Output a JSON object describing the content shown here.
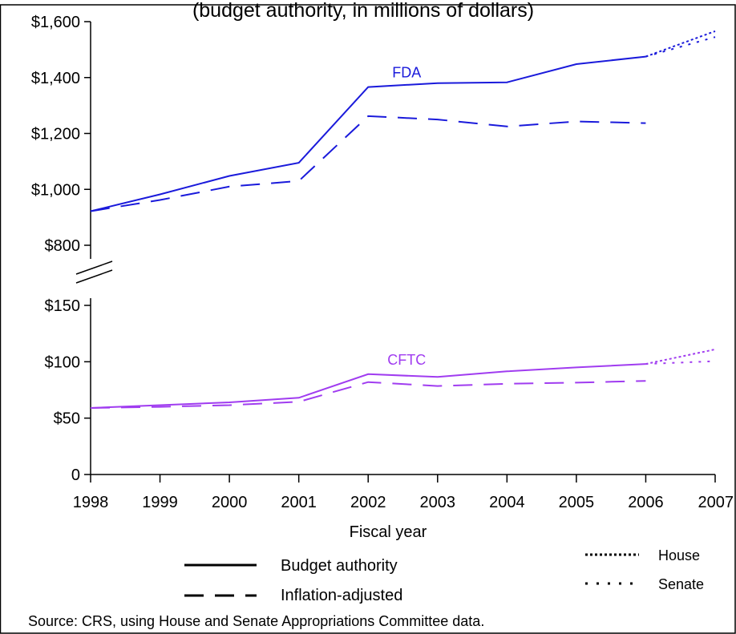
{
  "chart_data": [
    {
      "type": "line",
      "title": "(budget authority, in millions of dollars)",
      "y_tick_labels": [
        "$800",
        "$1,000",
        "$1,200",
        "$1,400",
        "$1,600"
      ],
      "ylim": [
        800,
        1600
      ],
      "x_tick_labels": [
        "1998",
        "1999",
        "2000",
        "2001",
        "2002",
        "2003",
        "2004",
        "2005",
        "2006",
        "2007"
      ],
      "series_label": "FDA",
      "color": "#1a1adb",
      "series": [
        {
          "style": "solid",
          "x": [
            1998,
            1999,
            2000,
            2001,
            2002,
            2003,
            2004,
            2005,
            2006
          ],
          "values": [
            922,
            982,
            1048,
            1095,
            1366,
            1380,
            1383,
            1448,
            1475
          ]
        },
        {
          "style": "dashed",
          "x": [
            1998,
            1999,
            2000,
            2001,
            2002,
            2003,
            2004,
            2005,
            2006
          ],
          "values": [
            922,
            962,
            1010,
            1030,
            1262,
            1250,
            1225,
            1243,
            1237
          ]
        },
        {
          "style": "house",
          "x": [
            2006,
            2007
          ],
          "values": [
            1475,
            1566
          ]
        },
        {
          "style": "senate",
          "x": [
            2006,
            2007
          ],
          "values": [
            1475,
            1545
          ]
        }
      ]
    },
    {
      "type": "line",
      "y_tick_labels": [
        "0",
        "$50",
        "$100",
        "$150"
      ],
      "ylim": [
        0,
        150
      ],
      "series_label": "CFTC",
      "color": "#a03cf0",
      "series": [
        {
          "style": "solid",
          "x": [
            1998,
            1999,
            2000,
            2001,
            2002,
            2003,
            2004,
            2005,
            2006
          ],
          "values": [
            59,
            61.5,
            64,
            68,
            89,
            86.5,
            91.5,
            95,
            98
          ]
        },
        {
          "style": "dashed",
          "x": [
            1998,
            1999,
            2000,
            2001,
            2002,
            2003,
            2004,
            2005,
            2006
          ],
          "values": [
            59,
            60,
            61.5,
            64.5,
            82,
            78.5,
            80.5,
            81.5,
            83
          ]
        },
        {
          "style": "house",
          "x": [
            2006,
            2007
          ],
          "values": [
            98,
            111
          ]
        },
        {
          "style": "senate",
          "x": [
            2006,
            2007
          ],
          "values": [
            98,
            100.5
          ]
        }
      ]
    }
  ],
  "xlabel": "Fiscal year",
  "legend": {
    "budget_authority": "Budget authority",
    "inflation_adjusted": "Inflation-adjusted",
    "house": "House",
    "senate": "Senate"
  },
  "source": "Source: CRS, using House and Senate Appropriations Committee data."
}
